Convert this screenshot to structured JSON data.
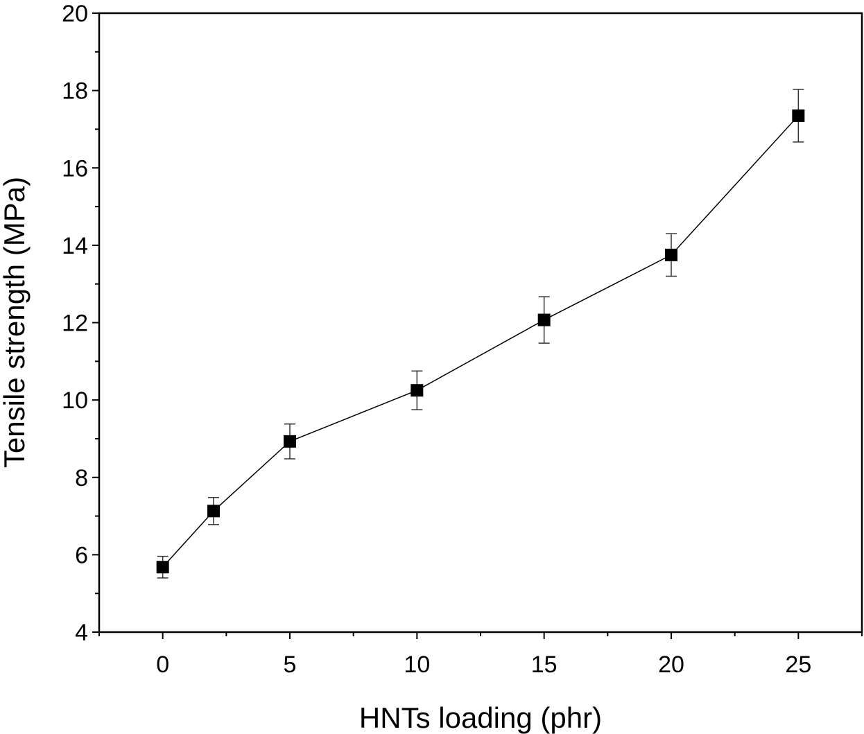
{
  "chart_data": {
    "type": "scatter",
    "title": "",
    "xlabel": "HNTs loading (phr)",
    "ylabel": "Tensile strength (MPa)",
    "xlim": [
      -2.5,
      27.5
    ],
    "ylim": [
      4,
      20
    ],
    "x_ticks": [
      0,
      5,
      10,
      15,
      20,
      25
    ],
    "x_tick_labels": [
      "0",
      "5",
      "10",
      "15",
      "20",
      "25"
    ],
    "x_minor_ticks": [
      -2.5,
      2.5,
      7.5,
      12.5,
      17.5,
      22.5,
      27.5
    ],
    "y_ticks": [
      4,
      6,
      8,
      10,
      12,
      14,
      16,
      18,
      20
    ],
    "y_tick_labels": [
      "4",
      "6",
      "8",
      "10",
      "12",
      "14",
      "16",
      "18",
      "20"
    ],
    "y_minor_ticks": [
      5,
      7,
      9,
      11,
      13,
      15,
      17,
      19
    ],
    "grid": false,
    "marker": "square",
    "connected_line": true,
    "color": "#000000",
    "series": [
      {
        "x": [
          0,
          2,
          5,
          10,
          15,
          20,
          25
        ],
        "y": [
          5.68,
          7.13,
          8.93,
          10.25,
          12.07,
          13.75,
          17.35
        ],
        "error": [
          0.28,
          0.35,
          0.45,
          0.5,
          0.6,
          0.55,
          0.68
        ]
      }
    ]
  }
}
